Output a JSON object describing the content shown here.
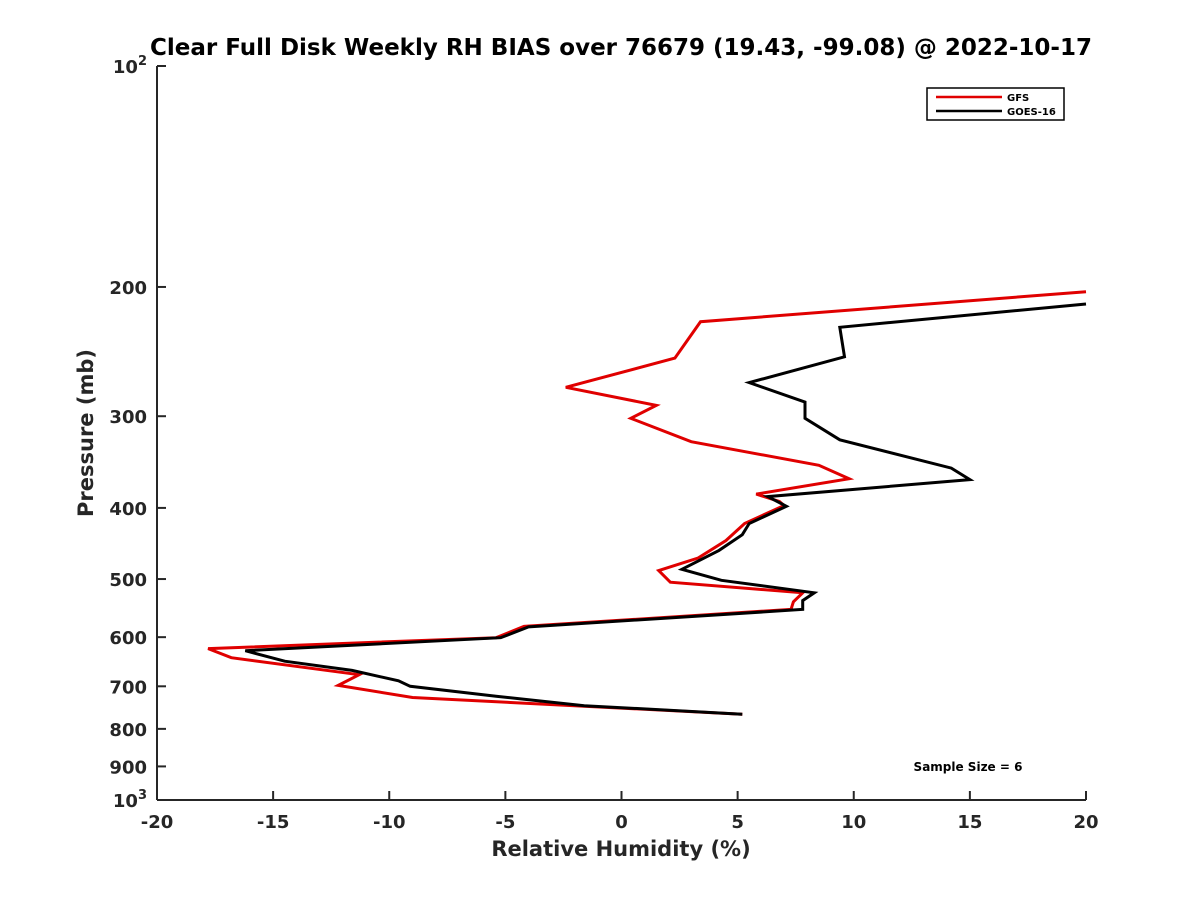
{
  "chart_data": {
    "type": "line",
    "title": "Clear Full Disk Weekly RH BIAS over 76679 (19.43, -99.08) @ 2022-10-17",
    "xlabel": "Relative Humidity (%)",
    "ylabel": "Pressure (mb)",
    "xlim": [
      -20,
      20
    ],
    "ylim": [
      100,
      1000
    ],
    "y_scale": "log",
    "y_reversed": true,
    "grid": false,
    "legend_position": "top-right",
    "x_ticks": [
      -20,
      -15,
      -10,
      -5,
      0,
      5,
      10,
      15,
      20
    ],
    "x_tick_labels": [
      "-20",
      "-15",
      "-10",
      "-5",
      "0",
      "5",
      "10",
      "15",
      "20"
    ],
    "y_ticks": [
      {
        "value": 100,
        "base": "10",
        "exp": "2"
      },
      {
        "value": 200,
        "label": "200"
      },
      {
        "value": 300,
        "label": "300"
      },
      {
        "value": 400,
        "label": "400"
      },
      {
        "value": 500,
        "label": "500"
      },
      {
        "value": 600,
        "label": "600"
      },
      {
        "value": 700,
        "label": "700"
      },
      {
        "value": 800,
        "label": "800"
      },
      {
        "value": 900,
        "label": "900"
      },
      {
        "value": 1000,
        "base": "10",
        "exp": "3"
      }
    ],
    "series": [
      {
        "name": "GFS",
        "color": "#e00000",
        "points": [
          [
            20.0,
            203
          ],
          [
            3.4,
            223
          ],
          [
            2.3,
            250
          ],
          [
            -2.4,
            274
          ],
          [
            1.5,
            290
          ],
          [
            0.4,
            302
          ],
          [
            3.0,
            325
          ],
          [
            8.5,
            350
          ],
          [
            9.8,
            365
          ],
          [
            5.8,
            383
          ],
          [
            6.8,
            392
          ],
          [
            7.0,
            397
          ],
          [
            5.3,
            420
          ],
          [
            4.5,
            443
          ],
          [
            3.3,
            468
          ],
          [
            1.6,
            487
          ],
          [
            2.1,
            505
          ],
          [
            7.8,
            522
          ],
          [
            7.4,
            537
          ],
          [
            7.3,
            550
          ],
          [
            -4.2,
            580
          ],
          [
            -5.4,
            601
          ],
          [
            -17.8,
            622
          ],
          [
            -16.8,
            640
          ],
          [
            -11.3,
            675
          ],
          [
            -12.2,
            698
          ],
          [
            -9.0,
            725
          ],
          [
            5.2,
            764
          ]
        ]
      },
      {
        "name": "GOES-16",
        "color": "#000000",
        "points": [
          [
            20.0,
            211
          ],
          [
            9.4,
            227
          ],
          [
            9.6,
            249
          ],
          [
            5.5,
            270
          ],
          [
            7.9,
            287
          ],
          [
            7.9,
            302
          ],
          [
            9.4,
            323
          ],
          [
            14.2,
            353
          ],
          [
            15.0,
            366
          ],
          [
            6.3,
            386
          ],
          [
            7.1,
            398
          ],
          [
            5.5,
            420
          ],
          [
            5.2,
            435
          ],
          [
            4.2,
            457
          ],
          [
            2.6,
            485
          ],
          [
            4.3,
            502
          ],
          [
            8.3,
            522
          ],
          [
            7.8,
            535
          ],
          [
            7.8,
            550
          ],
          [
            -4.0,
            581
          ],
          [
            -5.2,
            601
          ],
          [
            -16.2,
            626
          ],
          [
            -14.5,
            647
          ],
          [
            -11.6,
            666
          ],
          [
            -9.6,
            688
          ],
          [
            -9.1,
            700
          ],
          [
            -5.4,
            722
          ],
          [
            -1.6,
            744
          ],
          [
            5.2,
            764
          ]
        ]
      }
    ],
    "annotation": "Sample Size = 6"
  }
}
